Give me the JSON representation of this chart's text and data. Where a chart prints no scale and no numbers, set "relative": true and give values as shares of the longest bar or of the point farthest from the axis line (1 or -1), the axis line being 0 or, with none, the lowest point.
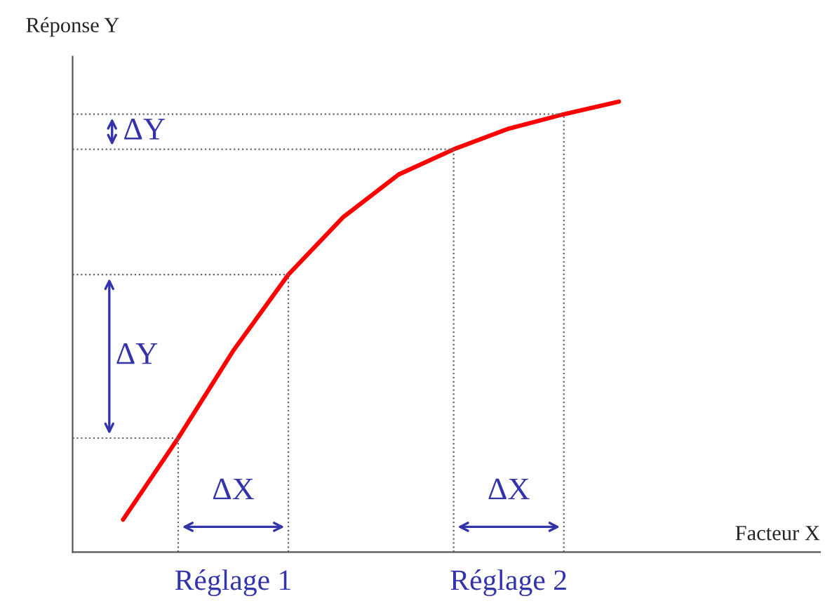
{
  "chart_data": {
    "type": "line",
    "relative": true,
    "xlabel": "Facteur X",
    "ylabel": "Réponse Y",
    "categories": [
      null,
      null,
      null,
      null,
      null,
      null,
      null,
      null,
      null,
      null
    ],
    "series": [
      {
        "color": "#ff0000",
        "values": [
          0.072,
          0.253,
          0.447,
          0.616,
          0.744,
          0.838,
          0.894,
          0.94,
          0.972,
          1.0
        ]
      }
    ],
    "annotations": [
      "ΔY",
      "ΔY",
      "ΔX",
      "ΔX",
      "Réglage 1",
      "Réglage 2"
    ],
    "ref_lines": [
      {
        "axis": "y",
        "value": 0.972,
        "color": "#666666",
        "line_style": "dotted"
      },
      {
        "axis": "y",
        "value": 0.894,
        "color": "#666666",
        "line_style": "dotted"
      },
      {
        "axis": "y",
        "value": 0.616,
        "color": "#666666",
        "line_style": "dotted"
      },
      {
        "axis": "y",
        "value": 0.253,
        "color": "#666666",
        "line_style": "dotted"
      }
    ],
    "marker": "none",
    "line_style": "solid"
  }
}
